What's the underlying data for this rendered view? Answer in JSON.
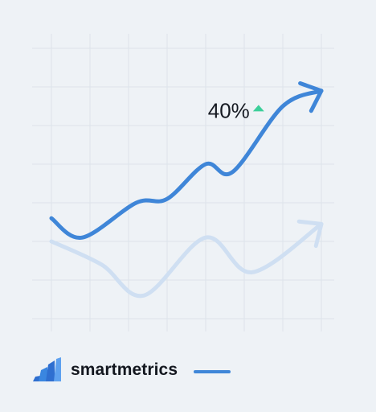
{
  "chart_data": {
    "type": "line",
    "xlim": [
      0,
      7
    ],
    "ylim": [
      0,
      7
    ],
    "grid": true,
    "series": [
      {
        "role": "primary",
        "color": "#3f86d8",
        "arrow": true,
        "points": [
          [
            0,
            2.6
          ],
          [
            0.8,
            2.1
          ],
          [
            2.2,
            3.0
          ],
          [
            3.0,
            3.1
          ],
          [
            4.0,
            4.0
          ],
          [
            4.7,
            3.8
          ],
          [
            6.0,
            5.5
          ],
          [
            7.0,
            5.9
          ]
        ]
      },
      {
        "role": "secondary",
        "color": "#cfdff2",
        "arrow": true,
        "points": [
          [
            0,
            2.0
          ],
          [
            1.3,
            1.4
          ],
          [
            2.4,
            0.6
          ],
          [
            4.0,
            2.1
          ],
          [
            5.2,
            1.2
          ],
          [
            7.0,
            2.45
          ]
        ]
      }
    ],
    "annotations": [
      {
        "text": "40%",
        "x": 4.6,
        "y": 5.2,
        "indicator": "up",
        "indicator_color": "#3ccf9a"
      }
    ]
  },
  "legend": {
    "brand_name": "smartmetrics",
    "line_color": "#3f86d8",
    "icon": "bar-chart-logo-icon"
  }
}
